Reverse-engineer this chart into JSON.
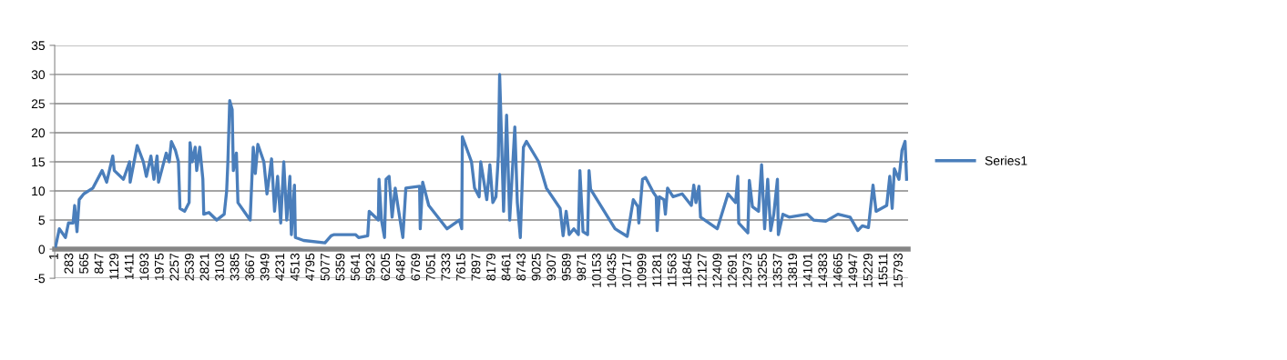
{
  "chart_data": {
    "type": "line",
    "legend": "right",
    "grid": "y",
    "marker": "none",
    "line_style": "solid",
    "xlim": [
      0,
      15960
    ],
    "ylim": [
      -5,
      35
    ],
    "yticks": [
      -5,
      0,
      5,
      10,
      15,
      20,
      25,
      30,
      35
    ],
    "xticks": [
      1,
      283,
      565,
      847,
      1129,
      1411,
      1693,
      1975,
      2257,
      2539,
      2821,
      3103,
      3385,
      3667,
      3949,
      4231,
      4513,
      4795,
      5077,
      5359,
      5641,
      5923,
      6205,
      6487,
      6769,
      7051,
      7333,
      7615,
      7897,
      8179,
      8461,
      8743,
      9025,
      9307,
      9589,
      9871,
      10153,
      10435,
      10717,
      10999,
      11281,
      11563,
      11845,
      12127,
      12409,
      12691,
      12973,
      13255,
      13537,
      13819,
      14101,
      14383,
      14665,
      14947,
      15229,
      15511,
      15793
    ],
    "series": [
      {
        "name": "Series1",
        "color": "#4a7ebb",
        "x": [
          18,
          87,
          201,
          258,
          344,
          373,
          417,
          458,
          544,
          715,
          887,
          972,
          1086,
          1115,
          1286,
          1400,
          1411,
          1543,
          1658,
          1714,
          1800,
          1856,
          1914,
          1942,
          2086,
          2142,
          2182,
          2257,
          2314,
          2343,
          2429,
          2514,
          2531,
          2571,
          2627,
          2656,
          2713,
          2771,
          2788,
          2884,
          3028,
          3170,
          3216,
          3239,
          3273,
          3319,
          3341,
          3398,
          3427,
          3655,
          3713,
          3752,
          3799,
          3912,
          3970,
          4056,
          4112,
          4169,
          4227,
          4284,
          4340,
          4398,
          4426,
          4484,
          4501,
          4655,
          5054,
          5169,
          5226,
          5625,
          5683,
          5854,
          5882,
          6053,
          6065,
          6111,
          6168,
          6197,
          6254,
          6310,
          6368,
          6425,
          6511,
          6567,
          6824,
          6836,
          6882,
          6995,
          7338,
          7567,
          7612,
          7624,
          7795,
          7852,
          7938,
          7967,
          8081,
          8138,
          8194,
          8252,
          8297,
          8321,
          8366,
          8395,
          8451,
          8509,
          8605,
          8652,
          8708,
          8766,
          8823,
          9051,
          9195,
          9452,
          9508,
          9565,
          9622,
          9708,
          9794,
          9822,
          9880,
          9966,
          9993,
          10022,
          10479,
          10707,
          10764,
          10821,
          10907,
          10924,
          10947,
          10993,
          11050,
          11192,
          11250,
          11267,
          11307,
          11393,
          11421,
          11461,
          11564,
          11735,
          11906,
          11952,
          11992,
          12049,
          12078,
          12391,
          12592,
          12734,
          12775,
          12792,
          12963,
          12991,
          13049,
          13163,
          13220,
          13277,
          13334,
          13390,
          13448,
          13516,
          13533,
          13619,
          13734,
          14076,
          14190,
          14419,
          14647,
          14875,
          15019,
          15104,
          15218,
          15304,
          15361,
          15560,
          15617,
          15662,
          15703,
          15789,
          15846,
          15903,
          15932
        ],
        "values": [
          0.5,
          3.5,
          2,
          4.5,
          4.5,
          7.5,
          3,
          8.5,
          9.5,
          10.5,
          13.5,
          11.5,
          16,
          13.5,
          12,
          15,
          11.5,
          17.8,
          15,
          12.5,
          16,
          12,
          16,
          11.5,
          16.5,
          15,
          18.5,
          17,
          15,
          7,
          6.5,
          8,
          18.3,
          15,
          17.5,
          13.5,
          17.5,
          12,
          6,
          6.3,
          5,
          6,
          10,
          15,
          25.5,
          24,
          13.5,
          16.5,
          8,
          5,
          17.5,
          13,
          18,
          15,
          9.5,
          15.5,
          6.5,
          12.5,
          4.5,
          15,
          5,
          12.5,
          2.5,
          11,
          2,
          1.5,
          1.1,
          2.3,
          2.5,
          2.5,
          2,
          2.3,
          6.5,
          5,
          12,
          5,
          2,
          12,
          12.5,
          5.5,
          10.5,
          7,
          2,
          10.5,
          10.8,
          3.5,
          11.5,
          7.5,
          3.5,
          5,
          3.5,
          19.3,
          15,
          10.5,
          9,
          15,
          8.5,
          14.5,
          8,
          9,
          16,
          30,
          16,
          6.5,
          23,
          5,
          21,
          8,
          2,
          17.5,
          18.5,
          15,
          10.5,
          7,
          2.3,
          6.5,
          2.5,
          3.5,
          2.5,
          13.5,
          3,
          2.5,
          13.5,
          10.3,
          3.5,
          2.2,
          5.3,
          8.5,
          7.3,
          4.5,
          7,
          12,
          12.3,
          9.8,
          9,
          3.2,
          9,
          8.5,
          6,
          10.5,
          9,
          9.5,
          7.5,
          11,
          8,
          10.8,
          5.5,
          3.5,
          9.5,
          8,
          12.5,
          4.5,
          2.8,
          11.8,
          7.3,
          6.5,
          14.5,
          3.5,
          12,
          3.2,
          6,
          12,
          2.5,
          6,
          5.5,
          6,
          5,
          4.8,
          6,
          5.5,
          3.2,
          4,
          3.7,
          11,
          6.5,
          7.5,
          12.5,
          7,
          13.8,
          12,
          17,
          18.5,
          12
        ]
      }
    ]
  }
}
